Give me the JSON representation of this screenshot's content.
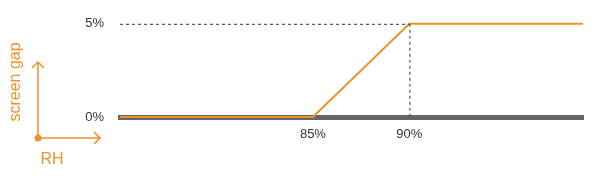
{
  "chart_data": {
    "type": "line",
    "x_label": "RH",
    "y_label": "screen gap",
    "x": [
      75,
      85,
      90,
      99
    ],
    "values": [
      0,
      0,
      5,
      5
    ],
    "color": "#f0912a",
    "xlim": [
      75,
      99
    ],
    "xticks": [
      {
        "value": 85,
        "label": "85%"
      },
      {
        "value": 90,
        "label": "90%"
      }
    ],
    "ylim": [
      0,
      5
    ],
    "yticks": [
      {
        "value": 0,
        "label": "0%"
      },
      {
        "value": 5,
        "label": "5%"
      }
    ],
    "grid": false
  }
}
